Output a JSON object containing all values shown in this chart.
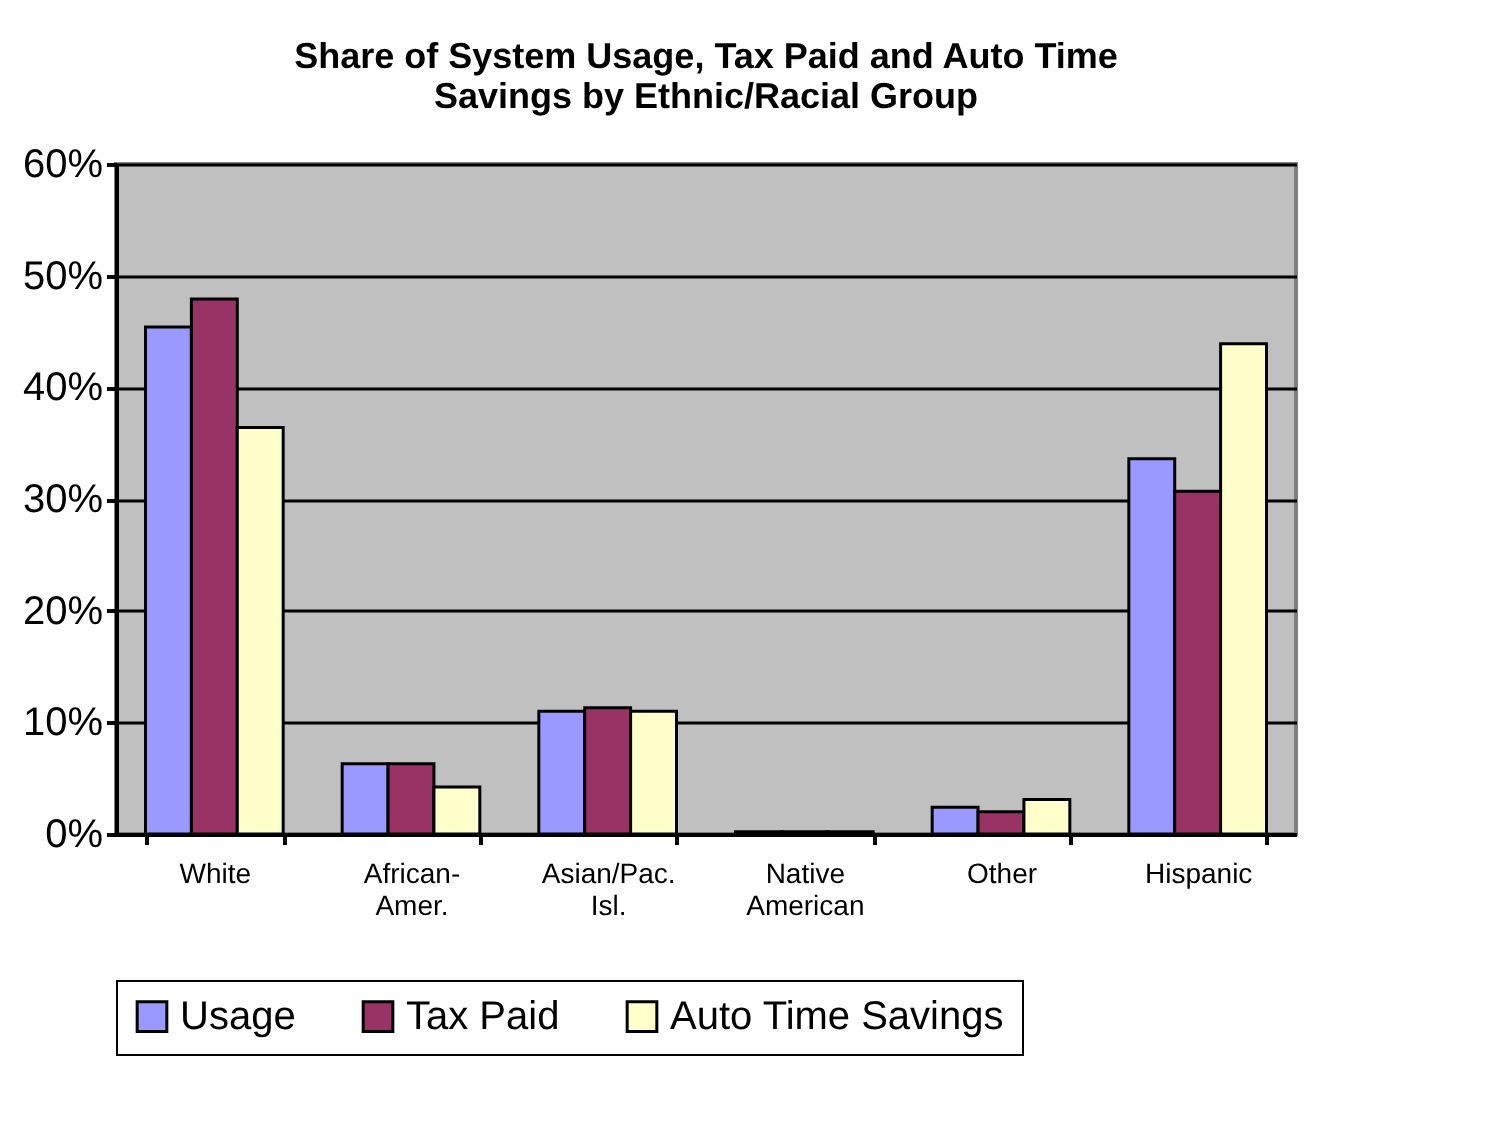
{
  "chart_data": {
    "type": "bar",
    "title": "Share of System Usage, Tax Paid and Auto Time\nSavings by Ethnic/Racial Group",
    "categories": [
      "White",
      "African-\nAmer.",
      "Asian/Pac.\nIsl.",
      "Native\nAmerican",
      "Other",
      "Hispanic"
    ],
    "series": [
      {
        "name": "Usage",
        "color": "#9999ff",
        "values": [
          45.4,
          6.3,
          11.0,
          0.2,
          2.4,
          33.6
        ]
      },
      {
        "name": "Tax Paid",
        "color": "#993366",
        "values": [
          47.9,
          6.3,
          11.3,
          0.2,
          2.0,
          30.7
        ]
      },
      {
        "name": "Auto Time Savings",
        "color": "#ffffcc",
        "values": [
          36.4,
          4.2,
          11.0,
          0.2,
          3.1,
          43.9
        ]
      }
    ],
    "ylim": [
      0,
      60
    ],
    "yticks": [
      {
        "value": 0,
        "label": "0%"
      },
      {
        "value": 10,
        "label": "10%"
      },
      {
        "value": 20,
        "label": "20%"
      },
      {
        "value": 30,
        "label": "30%"
      },
      {
        "value": 40,
        "label": "40%"
      },
      {
        "value": 50,
        "label": "50%"
      },
      {
        "value": 60,
        "label": "60%"
      }
    ],
    "grid": "y",
    "legend": "bottom"
  }
}
